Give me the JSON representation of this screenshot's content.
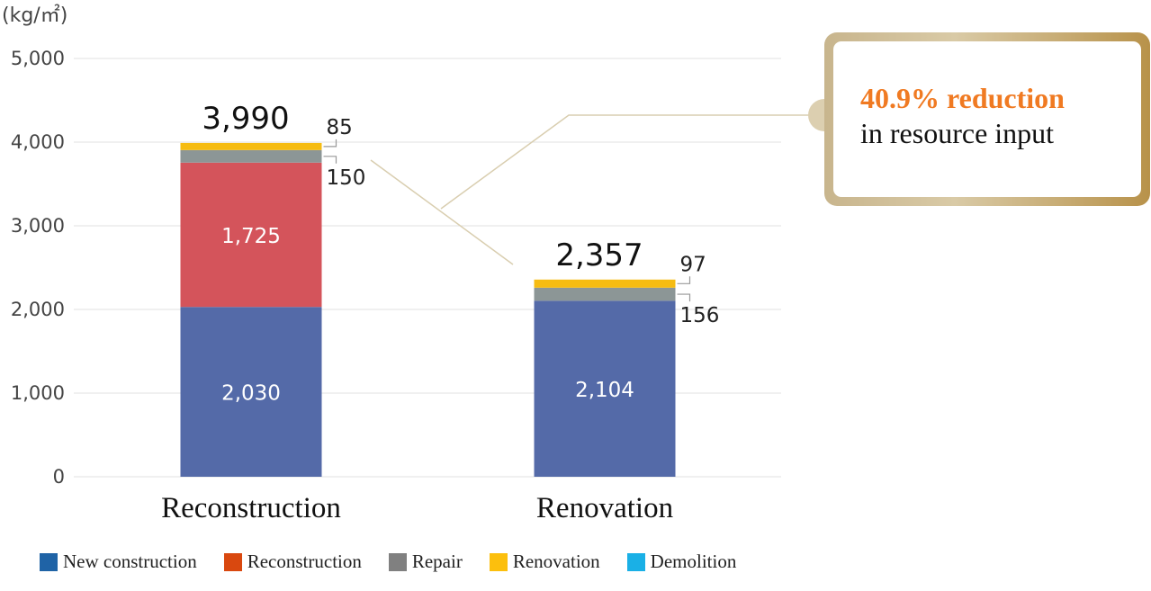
{
  "chart_data": {
    "type": "bar",
    "stacked": true,
    "unit_label": "(kg/㎡)",
    "categories": [
      "Reconstruction",
      "Renovation"
    ],
    "y_ticks": [
      "0",
      "1,000",
      "2,000",
      "3,000",
      "4,000",
      "5,000"
    ],
    "ylim": [
      0,
      5000
    ],
    "grid": true,
    "series": [
      {
        "name": "New construction",
        "color": "#546aa8",
        "legend_color": "#1f63a6",
        "values": [
          2030,
          2104
        ],
        "labels": [
          "2,030",
          "2,104"
        ]
      },
      {
        "name": "Reconstruction",
        "color": "#d4545b",
        "legend_color": "#d9480f",
        "values": [
          1725,
          0
        ],
        "labels": [
          "1,725",
          ""
        ]
      },
      {
        "name": "Repair",
        "color": "#8c9696",
        "legend_color": "#808080",
        "values": [
          150,
          156
        ],
        "labels": [
          "150",
          "156"
        ]
      },
      {
        "name": "Renovation",
        "color": "#f6bc12",
        "legend_color": "#fcbf0d",
        "values": [
          85,
          97
        ],
        "labels": [
          "85",
          "97"
        ]
      },
      {
        "name": "Demolition",
        "color": "#1ab0e6",
        "legend_color": "#1ab0e6",
        "values": [
          0,
          0
        ],
        "labels": [
          "",
          ""
        ]
      }
    ],
    "totals": [
      3990,
      2357
    ],
    "total_labels": [
      "3,990",
      "2,357"
    ],
    "legend_position": "bottom"
  },
  "callout": {
    "highlight": "40.9% reduction",
    "text": "in resource input",
    "accent_color": "#f07a22"
  }
}
